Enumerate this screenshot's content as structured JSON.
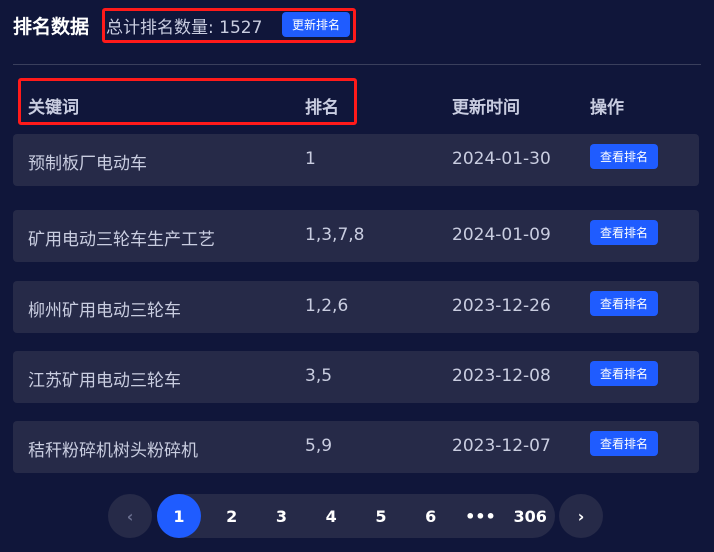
{
  "header": {
    "title": "排名数据",
    "total_label": "总计排名数量:",
    "total": "1527",
    "update_button": "更新排名"
  },
  "table": {
    "columns": [
      "关键词",
      "排名",
      "更新时间",
      "操作"
    ],
    "rows": [
      {
        "keyword": "预制板厂电动车",
        "rank": "1",
        "date": "2024-01-30",
        "action": "查看排名"
      },
      {
        "keyword": "矿用电动三轮车生产工艺",
        "rank": "1,3,7,8",
        "date": "2024-01-09",
        "action": "查看排名"
      },
      {
        "keyword": "柳州矿用电动三轮车",
        "rank": "1,2,6",
        "date": "2023-12-26",
        "action": "查看排名"
      },
      {
        "keyword": "江苏矿用电动三轮车",
        "rank": "3,5",
        "date": "2023-12-08",
        "action": "查看排名"
      },
      {
        "keyword": "秸秆粉碎机树头粉碎机",
        "rank": "5,9",
        "date": "2023-12-07",
        "action": "查看排名"
      }
    ]
  },
  "pagination": {
    "prev": "‹",
    "next": "›",
    "pages": [
      "1",
      "2",
      "3",
      "4",
      "5",
      "6",
      "•••",
      "306"
    ],
    "current": "1"
  },
  "colors": {
    "accent": "#1f5cff",
    "background": "#10163a",
    "row": "#262a48",
    "annotation": "#ff1a1a"
  }
}
